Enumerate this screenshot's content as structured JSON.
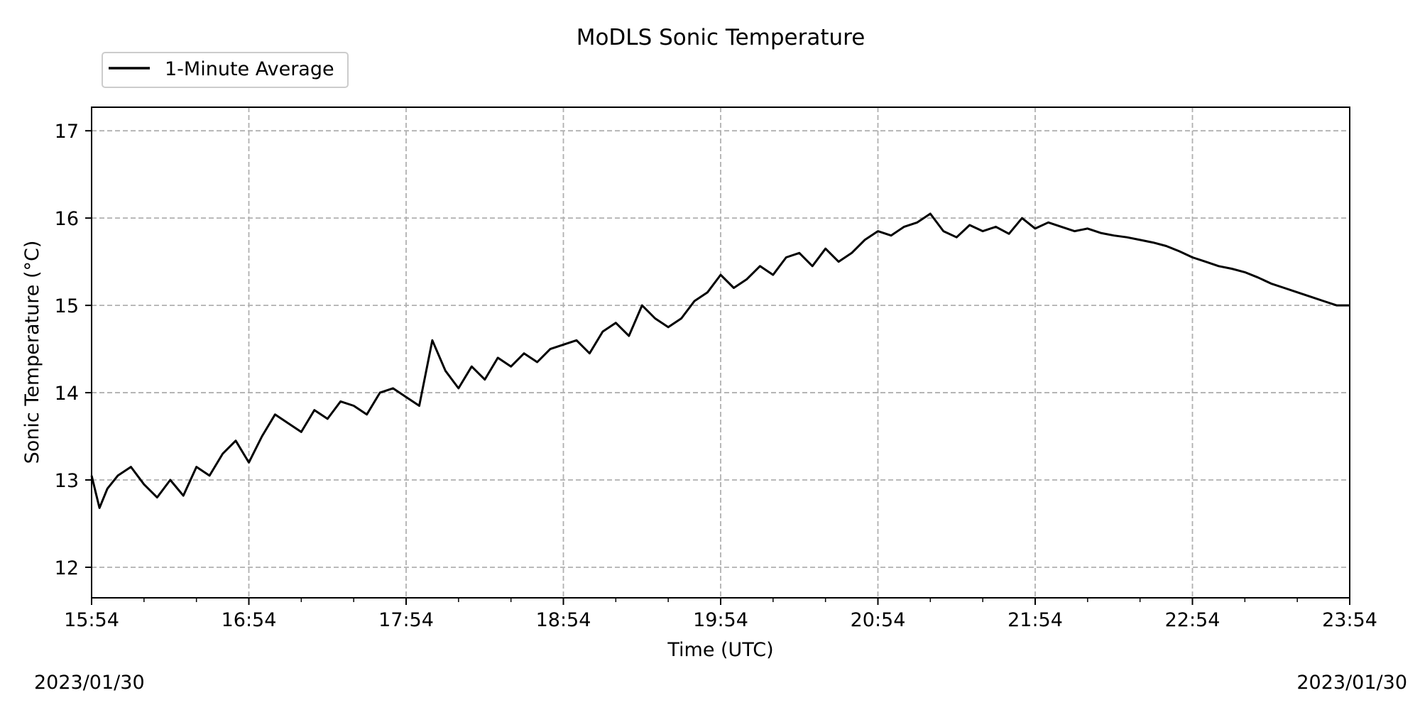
{
  "chart_data": {
    "type": "line",
    "title": "MoDLS Sonic Temperature",
    "xlabel": "Time (UTC)",
    "ylabel": "Sonic Temperature (°C)",
    "x_ticks": [
      "15:54",
      "16:54",
      "17:54",
      "18:54",
      "19:54",
      "20:54",
      "21:54",
      "22:54",
      "23:54"
    ],
    "y_ticks": [
      12,
      13,
      14,
      15,
      16,
      17
    ],
    "ylim": [
      11.65,
      17.27
    ],
    "xlim_minutes_after_1554": [
      0,
      480
    ],
    "start_date": "2023/01/30",
    "end_date": "2023/01/30",
    "grid": true,
    "legend_position": "top-left",
    "series": [
      {
        "name": "1-Minute Average",
        "color": "#000000",
        "x_minutes_after_1554": [
          0,
          3,
          6,
          10,
          15,
          20,
          25,
          30,
          35,
          40,
          45,
          50,
          55,
          60,
          65,
          70,
          75,
          80,
          85,
          90,
          95,
          100,
          105,
          110,
          115,
          120,
          125,
          130,
          135,
          140,
          145,
          150,
          155,
          160,
          165,
          170,
          175,
          180,
          185,
          190,
          195,
          200,
          205,
          210,
          215,
          220,
          225,
          230,
          235,
          240,
          245,
          250,
          255,
          260,
          265,
          270,
          275,
          280,
          285,
          290,
          295,
          300,
          305,
          310,
          315,
          320,
          325,
          330,
          335,
          340,
          345,
          350,
          355,
          360,
          365,
          370,
          375,
          380,
          385,
          390,
          395,
          400,
          405,
          410,
          415,
          420,
          425,
          430,
          435,
          440,
          445,
          450,
          455,
          460,
          465,
          470,
          475,
          480
        ],
        "values": [
          13.05,
          12.68,
          12.9,
          13.05,
          13.15,
          12.95,
          12.8,
          13.0,
          12.82,
          13.15,
          13.05,
          13.3,
          13.45,
          13.2,
          13.5,
          13.75,
          13.65,
          13.55,
          13.8,
          13.7,
          13.9,
          13.85,
          13.75,
          14.0,
          14.05,
          13.95,
          13.85,
          14.6,
          14.25,
          14.05,
          14.3,
          14.15,
          14.4,
          14.3,
          14.45,
          14.35,
          14.5,
          14.55,
          14.6,
          14.45,
          14.7,
          14.8,
          14.65,
          15.0,
          14.85,
          14.75,
          14.85,
          15.05,
          15.15,
          15.35,
          15.2,
          15.3,
          15.45,
          15.35,
          15.55,
          15.6,
          15.45,
          15.65,
          15.5,
          15.6,
          15.75,
          15.85,
          15.8,
          15.9,
          15.95,
          16.05,
          15.85,
          15.78,
          15.92,
          15.85,
          15.9,
          15.82,
          16.0,
          15.88,
          15.95,
          15.9,
          15.85,
          15.88,
          15.83,
          15.8,
          15.78,
          15.75,
          15.72,
          15.68,
          15.62,
          15.55,
          15.5,
          15.45,
          15.42,
          15.38,
          15.32,
          15.25,
          15.2,
          15.15,
          15.1,
          15.05,
          15.0,
          15.0
        ]
      }
    ]
  }
}
